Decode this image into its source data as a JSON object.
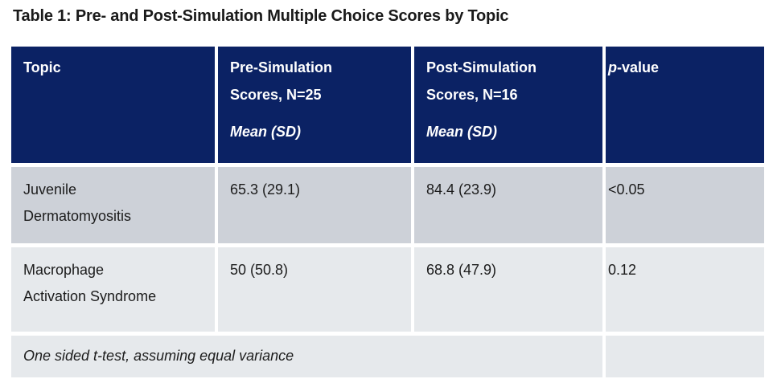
{
  "title": "Table 1: Pre- and Post-Simulation Multiple Choice Scores by Topic",
  "colors": {
    "title_text": "#1a1a1a",
    "header_bg": "#0b2264",
    "header_text": "#ffffff",
    "row1_bg": "#cdd1d8",
    "row2_bg": "#e6e9ec",
    "footer_bg": "#e6e9ec",
    "body_text": "#1c1c1c"
  },
  "header": {
    "topic": "Topic",
    "pre": {
      "line1": "Pre-Simulation",
      "line2": "Scores, N=25",
      "stat_label": "Mean (SD)"
    },
    "post": {
      "line1": "Post-Simulation",
      "line2": "Scores, N=16",
      "stat_label": "Mean (SD)"
    },
    "pvalue": {
      "italic_part": "p",
      "rest": "-value"
    }
  },
  "rows": [
    {
      "topic_line1": "Juvenile",
      "topic_line2": "Dermatomyositis",
      "pre": "65.3 (29.1)",
      "post": "84.4 (23.9)",
      "pvalue": "<0.05"
    },
    {
      "topic_line1": "Macrophage",
      "topic_line2": "Activation Syndrome",
      "pre": "50 (50.8)",
      "post": "68.8 (47.9)",
      "pvalue": "0.12"
    }
  ],
  "footnote": "One sided t-test, assuming equal variance"
}
